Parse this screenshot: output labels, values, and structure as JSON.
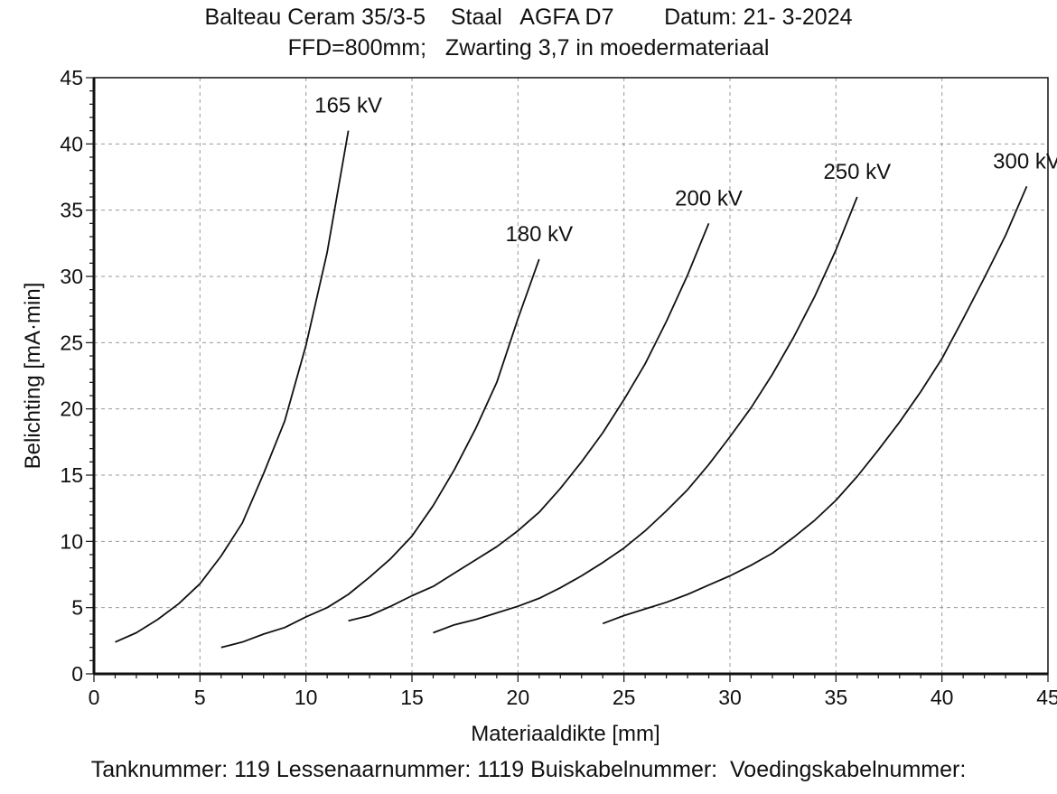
{
  "header": {
    "line1": "Balteau Ceram 35/3-5    Staal   AGFA D7        Datum: 21- 3-2024",
    "line2": "FFD=800mm;   Zwarting 3,7 in moedermateriaal"
  },
  "footer": {
    "text": "Tanknummer: 119 Lessenaarnummer: 1119 Buiskabelnummer:  Voedingskabelnummer:"
  },
  "chart_data": {
    "type": "line",
    "title": "",
    "xlabel": "Materiaaldikte [mm]",
    "ylabel": "Belichting [mA·min]",
    "xlim": [
      0,
      45
    ],
    "ylim": [
      0,
      45
    ],
    "xticks": [
      0,
      5,
      10,
      15,
      20,
      25,
      30,
      35,
      40,
      45
    ],
    "yticks": [
      0,
      5,
      10,
      15,
      20,
      25,
      30,
      35,
      40,
      45
    ],
    "grid": true,
    "series": [
      {
        "name": "165 kV",
        "x": [
          1,
          2,
          3,
          4,
          5,
          6,
          7,
          8,
          9,
          10,
          11,
          12
        ],
        "y": [
          2.4,
          3.1,
          4.1,
          5.3,
          6.8,
          8.9,
          11.4,
          15.1,
          19.1,
          24.8,
          31.8,
          41.0
        ]
      },
      {
        "name": "180 kV",
        "x": [
          6,
          7,
          8,
          9,
          10,
          11,
          12,
          13,
          14,
          15,
          16,
          17,
          18,
          19,
          20,
          21
        ],
        "y": [
          2.0,
          2.4,
          3.0,
          3.5,
          4.3,
          5.0,
          6.0,
          7.3,
          8.7,
          10.4,
          12.7,
          15.4,
          18.5,
          22.0,
          26.8,
          31.3
        ]
      },
      {
        "name": "200 kV",
        "x": [
          12,
          13,
          14,
          15,
          16,
          17,
          18,
          19,
          20,
          21,
          22,
          23,
          24,
          25,
          26,
          27,
          28,
          29
        ],
        "y": [
          4.0,
          4.4,
          5.1,
          5.9,
          6.6,
          7.6,
          8.6,
          9.6,
          10.8,
          12.2,
          14.0,
          16.0,
          18.2,
          20.7,
          23.4,
          26.6,
          30.1,
          34.0
        ]
      },
      {
        "name": "250 kV",
        "x": [
          16,
          17,
          18,
          19,
          20,
          21,
          22,
          23,
          24,
          25,
          26,
          27,
          28,
          29,
          30,
          31,
          32,
          33,
          34,
          35,
          36
        ],
        "y": [
          3.1,
          3.7,
          4.1,
          4.6,
          5.1,
          5.7,
          6.5,
          7.4,
          8.4,
          9.5,
          10.8,
          12.3,
          13.9,
          15.8,
          17.9,
          20.1,
          22.6,
          25.4,
          28.5,
          32.0,
          36.0
        ]
      },
      {
        "name": "300 kV",
        "x": [
          24,
          25,
          26,
          27,
          28,
          29,
          30,
          31,
          32,
          33,
          34,
          35,
          36,
          37,
          38,
          39,
          40,
          41,
          42,
          43,
          44
        ],
        "y": [
          3.8,
          4.4,
          4.9,
          5.4,
          6.0,
          6.7,
          7.4,
          8.2,
          9.1,
          10.3,
          11.6,
          13.1,
          14.9,
          16.9,
          19.0,
          21.3,
          23.8,
          26.8,
          29.9,
          33.1,
          36.8
        ]
      }
    ]
  }
}
